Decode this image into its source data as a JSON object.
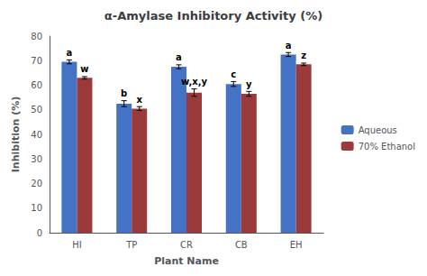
{
  "chart_data": {
    "type": "bar",
    "title": "α-Amylase Inhibitory Activity (%)",
    "xlabel": "Plant Name",
    "ylabel": "Inhibition (%)",
    "categories": [
      "HI",
      "TP",
      "CR",
      "CB",
      "EH"
    ],
    "series": [
      {
        "name": "Aqueous",
        "color": "#4472C4",
        "values": [
          69.5,
          52.5,
          67.5,
          60.5,
          72.5
        ],
        "errors": [
          0.8,
          1.2,
          0.8,
          1.0,
          0.8
        ],
        "letters": [
          "a",
          "b",
          "a",
          "c",
          "a"
        ]
      },
      {
        "name": "70% Ethanol",
        "color": "#9B3A3A",
        "values": [
          63.0,
          50.5,
          57.0,
          56.5,
          68.5
        ],
        "errors": [
          0.5,
          0.8,
          1.5,
          1.0,
          0.5
        ],
        "letters": [
          "w",
          "x",
          "w,x,y",
          "y",
          "z"
        ]
      }
    ],
    "ylim": [
      0,
      80
    ],
    "yticks": [
      0,
      10,
      20,
      30,
      40,
      50,
      60,
      70,
      80
    ],
    "grid": false,
    "legend": "right"
  }
}
